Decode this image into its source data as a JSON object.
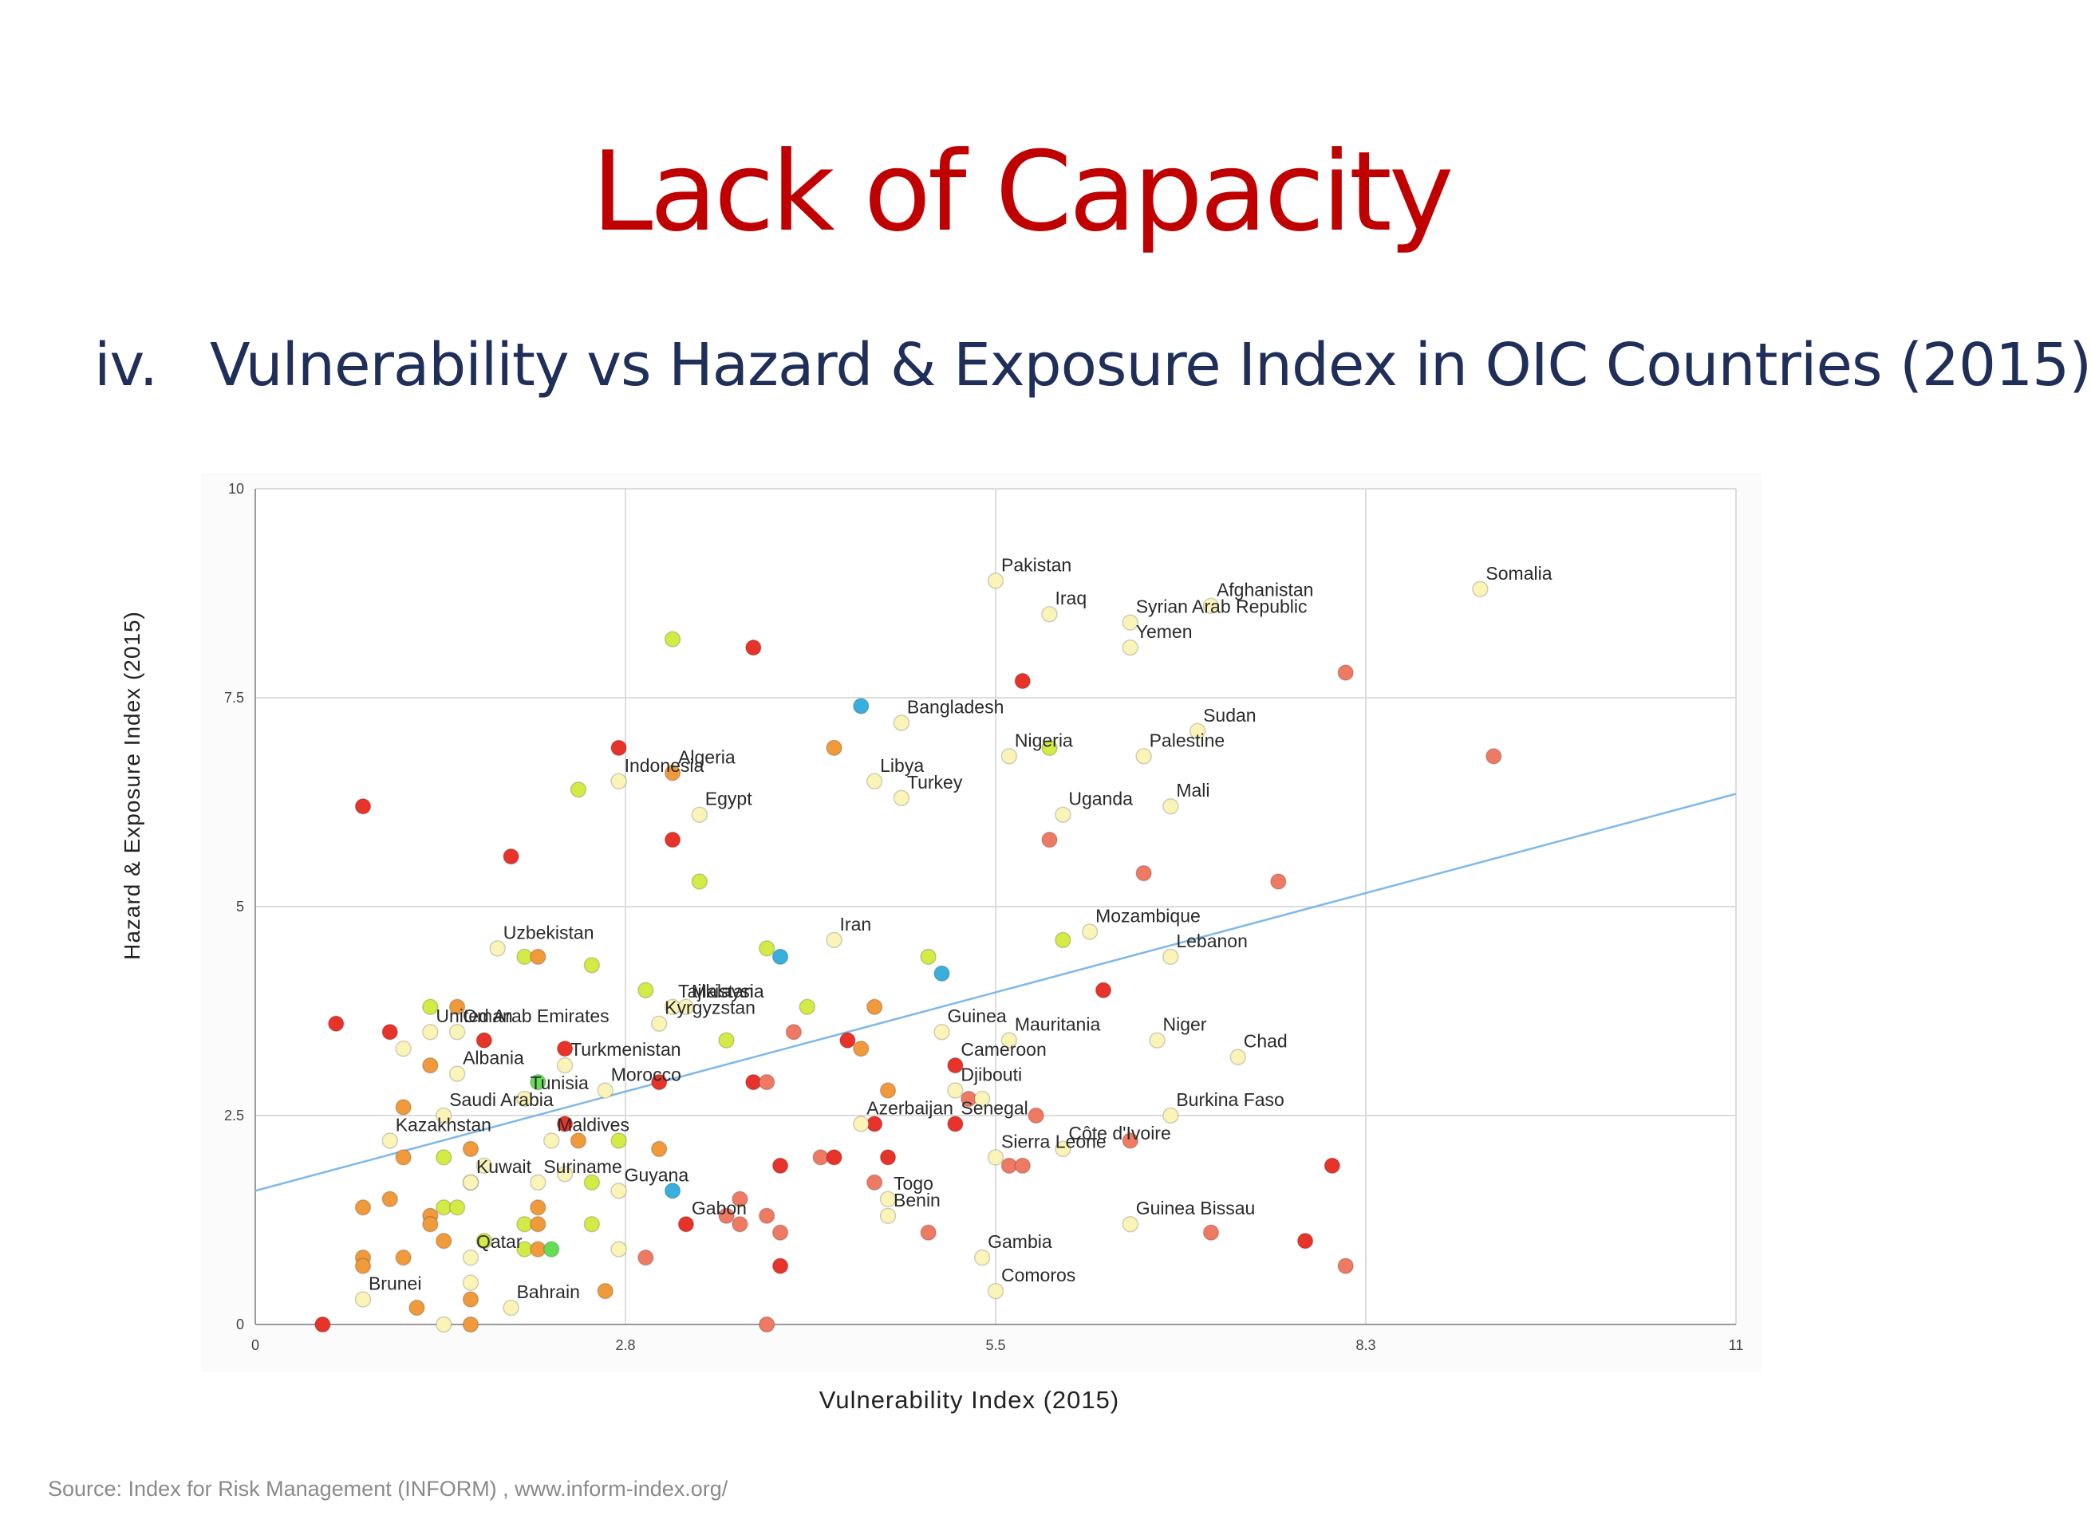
{
  "slide": {
    "title": "Lack of Capacity",
    "subtitle_number": "iv.",
    "subtitle_text": "Vulnerability vs Hazard & Exposure Index in OIC Countries (2015)",
    "source": "Source: Index for Risk Management (INFORM) , www.inform-index.org/"
  },
  "colors": {
    "red": "#e8332a",
    "salmon": "#ef7a64",
    "orange": "#f09a3c",
    "yellow": "#f7e78a",
    "pale": "#fbf4b8",
    "lime": "#d4ea45",
    "green": "#66dd55",
    "blue": "#3aaedc",
    "trendline": "#7fb8e8",
    "grid": "#dcdcdc"
  },
  "chart_data": {
    "type": "scatter",
    "xlabel": "Vulnerability Index (2015)",
    "ylabel": "Hazard & Exposure Index (2015)",
    "xlim": [
      0,
      11
    ],
    "ylim": [
      0,
      10
    ],
    "x_ticks": [
      "0",
      "2.8",
      "5.5",
      "8.3",
      "11"
    ],
    "x_tick_values": [
      0,
      2.75,
      5.5,
      8.25,
      11
    ],
    "y_ticks": [
      "0",
      "2.5",
      "5",
      "7.5",
      "10"
    ],
    "y_tick_values": [
      0,
      2.5,
      5,
      7.5,
      10
    ],
    "grid": true,
    "trendline": {
      "x": [
        0,
        11
      ],
      "y": [
        1.6,
        6.35
      ]
    },
    "points": [
      {
        "x": 5.5,
        "y": 8.9,
        "c": "pale",
        "label": "Pakistan"
      },
      {
        "x": 5.9,
        "y": 8.5,
        "c": "pale",
        "label": "Iraq"
      },
      {
        "x": 6.5,
        "y": 8.4,
        "c": "pale",
        "label": "Syrian Arab Republic"
      },
      {
        "x": 7.1,
        "y": 8.6,
        "c": "pale",
        "label": "Afghanistan"
      },
      {
        "x": 6.5,
        "y": 8.1,
        "c": "pale",
        "label": "Yemen"
      },
      {
        "x": 9.1,
        "y": 8.8,
        "c": "pale",
        "label": "Somalia"
      },
      {
        "x": 4.8,
        "y": 7.2,
        "c": "pale",
        "label": "Bangladesh"
      },
      {
        "x": 5.6,
        "y": 6.8,
        "c": "pale",
        "label": "Nigeria"
      },
      {
        "x": 5.9,
        "y": 6.9,
        "c": "lime",
        "label": ""
      },
      {
        "x": 7.0,
        "y": 7.1,
        "c": "pale",
        "label": "Sudan"
      },
      {
        "x": 6.6,
        "y": 6.8,
        "c": "pale",
        "label": "Palestine"
      },
      {
        "x": 4.6,
        "y": 6.5,
        "c": "pale",
        "label": "Libya"
      },
      {
        "x": 4.8,
        "y": 6.3,
        "c": "pale",
        "label": "Turkey"
      },
      {
        "x": 6.0,
        "y": 6.1,
        "c": "pale",
        "label": "Uganda"
      },
      {
        "x": 6.8,
        "y": 6.2,
        "c": "pale",
        "label": "Mali"
      },
      {
        "x": 2.7,
        "y": 6.5,
        "c": "pale",
        "label": "Indonesia"
      },
      {
        "x": 3.1,
        "y": 6.6,
        "c": "orange",
        "label": "Algeria"
      },
      {
        "x": 3.3,
        "y": 6.1,
        "c": "pale",
        "label": "Egypt"
      },
      {
        "x": 4.3,
        "y": 4.6,
        "c": "pale",
        "label": "Iran"
      },
      {
        "x": 6.2,
        "y": 4.7,
        "c": "pale",
        "label": "Mozambique"
      },
      {
        "x": 6.0,
        "y": 4.6,
        "c": "lime",
        "label": ""
      },
      {
        "x": 6.8,
        "y": 4.4,
        "c": "pale",
        "label": "Lebanon"
      },
      {
        "x": 1.8,
        "y": 4.5,
        "c": "pale",
        "label": "Uzbekistan"
      },
      {
        "x": 3.1,
        "y": 3.8,
        "c": "pale",
        "label": "Tajikistan"
      },
      {
        "x": 3.2,
        "y": 3.8,
        "c": "pale",
        "label": "Malaysia"
      },
      {
        "x": 5.1,
        "y": 3.5,
        "c": "pale",
        "label": "Guinea"
      },
      {
        "x": 5.6,
        "y": 3.4,
        "c": "pale",
        "label": "Mauritania"
      },
      {
        "x": 6.7,
        "y": 3.4,
        "c": "pale",
        "label": "Niger"
      },
      {
        "x": 7.3,
        "y": 3.2,
        "c": "pale",
        "label": "Chad"
      },
      {
        "x": 3.0,
        "y": 3.6,
        "c": "pale",
        "label": "Kyrgyzstan"
      },
      {
        "x": 1.5,
        "y": 3.5,
        "c": "pale",
        "label": "Oman"
      },
      {
        "x": 1.3,
        "y": 3.5,
        "c": "pale",
        "label": "United Arab Emirates"
      },
      {
        "x": 1.5,
        "y": 3.0,
        "c": "pale",
        "label": "Albania"
      },
      {
        "x": 2.3,
        "y": 3.1,
        "c": "pale",
        "label": "Turkmenistan"
      },
      {
        "x": 5.2,
        "y": 3.1,
        "c": "red",
        "label": "Cameroon"
      },
      {
        "x": 5.2,
        "y": 2.8,
        "c": "pale",
        "label": "Djibouti"
      },
      {
        "x": 2.6,
        "y": 2.8,
        "c": "pale",
        "label": "Morocco"
      },
      {
        "x": 1.4,
        "y": 2.5,
        "c": "pale",
        "label": "Saudi Arabia"
      },
      {
        "x": 2.0,
        "y": 2.7,
        "c": "pale",
        "label": "Tunisia"
      },
      {
        "x": 6.8,
        "y": 2.5,
        "c": "pale",
        "label": "Burkina Faso"
      },
      {
        "x": 1.0,
        "y": 2.2,
        "c": "pale",
        "label": "Kazakhstan"
      },
      {
        "x": 4.5,
        "y": 2.4,
        "c": "pale",
        "label": "Azerbaijan"
      },
      {
        "x": 5.2,
        "y": 2.4,
        "c": "red",
        "label": "Senegal"
      },
      {
        "x": 6.0,
        "y": 2.1,
        "c": "pale",
        "label": "Côte d'Ivoire"
      },
      {
        "x": 5.5,
        "y": 2.0,
        "c": "pale",
        "label": "Sierra Leone"
      },
      {
        "x": 2.2,
        "y": 2.2,
        "c": "pale",
        "label": "Maldives"
      },
      {
        "x": 2.1,
        "y": 1.7,
        "c": "pale",
        "label": "Suriname"
      },
      {
        "x": 2.7,
        "y": 1.6,
        "c": "pale",
        "label": "Guyana"
      },
      {
        "x": 1.6,
        "y": 1.7,
        "c": "pale",
        "label": "Kuwait"
      },
      {
        "x": 4.7,
        "y": 1.5,
        "c": "pale",
        "label": "Togo"
      },
      {
        "x": 4.7,
        "y": 1.3,
        "c": "pale",
        "label": "Benin"
      },
      {
        "x": 3.2,
        "y": 1.2,
        "c": "red",
        "label": "Gabon"
      },
      {
        "x": 6.5,
        "y": 1.2,
        "c": "pale",
        "label": "Guinea Bissau"
      },
      {
        "x": 5.4,
        "y": 0.8,
        "c": "pale",
        "label": "Gambia"
      },
      {
        "x": 5.5,
        "y": 0.4,
        "c": "pale",
        "label": "Comoros"
      },
      {
        "x": 1.6,
        "y": 0.8,
        "c": "pale",
        "label": "Qatar"
      },
      {
        "x": 0.8,
        "y": 0.3,
        "c": "pale",
        "label": "Brunei"
      },
      {
        "x": 1.9,
        "y": 0.2,
        "c": "pale",
        "label": "Bahrain"
      },
      {
        "x": 3.1,
        "y": 8.2,
        "c": "lime",
        "label": ""
      },
      {
        "x": 3.7,
        "y": 8.1,
        "c": "red",
        "label": ""
      },
      {
        "x": 5.7,
        "y": 7.7,
        "c": "red",
        "label": ""
      },
      {
        "x": 8.1,
        "y": 7.8,
        "c": "salmon",
        "label": ""
      },
      {
        "x": 4.5,
        "y": 7.4,
        "c": "blue",
        "label": ""
      },
      {
        "x": 4.3,
        "y": 6.9,
        "c": "orange",
        "label": ""
      },
      {
        "x": 2.7,
        "y": 6.9,
        "c": "red",
        "label": ""
      },
      {
        "x": 9.2,
        "y": 6.8,
        "c": "salmon",
        "label": ""
      },
      {
        "x": 0.8,
        "y": 6.2,
        "c": "red",
        "label": ""
      },
      {
        "x": 2.4,
        "y": 6.4,
        "c": "lime",
        "label": ""
      },
      {
        "x": 3.1,
        "y": 5.8,
        "c": "red",
        "label": ""
      },
      {
        "x": 5.9,
        "y": 5.8,
        "c": "salmon",
        "label": ""
      },
      {
        "x": 1.9,
        "y": 5.6,
        "c": "red",
        "label": ""
      },
      {
        "x": 6.6,
        "y": 5.4,
        "c": "salmon",
        "label": ""
      },
      {
        "x": 7.6,
        "y": 5.3,
        "c": "salmon",
        "label": ""
      },
      {
        "x": 3.3,
        "y": 5.3,
        "c": "lime",
        "label": ""
      },
      {
        "x": 3.8,
        "y": 4.5,
        "c": "lime",
        "label": ""
      },
      {
        "x": 3.9,
        "y": 4.4,
        "c": "blue",
        "label": ""
      },
      {
        "x": 5.0,
        "y": 4.4,
        "c": "lime",
        "label": ""
      },
      {
        "x": 5.1,
        "y": 4.2,
        "c": "blue",
        "label": ""
      },
      {
        "x": 2.0,
        "y": 4.4,
        "c": "lime",
        "label": ""
      },
      {
        "x": 2.1,
        "y": 4.4,
        "c": "orange",
        "label": ""
      },
      {
        "x": 2.5,
        "y": 4.3,
        "c": "lime",
        "label": ""
      },
      {
        "x": 6.3,
        "y": 4.0,
        "c": "red",
        "label": ""
      },
      {
        "x": 2.9,
        "y": 4.0,
        "c": "lime",
        "label": ""
      },
      {
        "x": 1.3,
        "y": 3.8,
        "c": "lime",
        "label": ""
      },
      {
        "x": 1.5,
        "y": 3.8,
        "c": "orange",
        "label": ""
      },
      {
        "x": 4.6,
        "y": 3.8,
        "c": "orange",
        "label": ""
      },
      {
        "x": 4.1,
        "y": 3.8,
        "c": "lime",
        "label": ""
      },
      {
        "x": 0.6,
        "y": 3.6,
        "c": "red",
        "label": ""
      },
      {
        "x": 1.0,
        "y": 3.5,
        "c": "red",
        "label": ""
      },
      {
        "x": 1.7,
        "y": 3.4,
        "c": "red",
        "label": ""
      },
      {
        "x": 4.0,
        "y": 3.5,
        "c": "salmon",
        "label": ""
      },
      {
        "x": 3.5,
        "y": 3.4,
        "c": "lime",
        "label": ""
      },
      {
        "x": 4.4,
        "y": 3.4,
        "c": "red",
        "label": ""
      },
      {
        "x": 4.5,
        "y": 3.3,
        "c": "orange",
        "label": ""
      },
      {
        "x": 1.1,
        "y": 3.3,
        "c": "pale",
        "label": ""
      },
      {
        "x": 2.3,
        "y": 3.3,
        "c": "red",
        "label": ""
      },
      {
        "x": 1.3,
        "y": 3.1,
        "c": "orange",
        "label": ""
      },
      {
        "x": 3.7,
        "y": 2.9,
        "c": "red",
        "label": ""
      },
      {
        "x": 3.8,
        "y": 2.9,
        "c": "salmon",
        "label": ""
      },
      {
        "x": 3.0,
        "y": 2.9,
        "c": "red",
        "label": ""
      },
      {
        "x": 2.1,
        "y": 2.9,
        "c": "green",
        "label": ""
      },
      {
        "x": 4.7,
        "y": 2.8,
        "c": "orange",
        "label": ""
      },
      {
        "x": 5.3,
        "y": 2.7,
        "c": "salmon",
        "label": ""
      },
      {
        "x": 5.4,
        "y": 2.7,
        "c": "pale",
        "label": ""
      },
      {
        "x": 1.1,
        "y": 2.6,
        "c": "orange",
        "label": ""
      },
      {
        "x": 5.8,
        "y": 2.5,
        "c": "salmon",
        "label": ""
      },
      {
        "x": 2.3,
        "y": 2.4,
        "c": "red",
        "label": ""
      },
      {
        "x": 4.6,
        "y": 2.4,
        "c": "red",
        "label": ""
      },
      {
        "x": 2.4,
        "y": 2.2,
        "c": "orange",
        "label": ""
      },
      {
        "x": 2.7,
        "y": 2.2,
        "c": "lime",
        "label": ""
      },
      {
        "x": 6.5,
        "y": 2.2,
        "c": "salmon",
        "label": ""
      },
      {
        "x": 1.6,
        "y": 2.1,
        "c": "orange",
        "label": ""
      },
      {
        "x": 3.0,
        "y": 2.1,
        "c": "orange",
        "label": ""
      },
      {
        "x": 1.1,
        "y": 2.0,
        "c": "orange",
        "label": ""
      },
      {
        "x": 1.4,
        "y": 2.0,
        "c": "lime",
        "label": ""
      },
      {
        "x": 4.2,
        "y": 2.0,
        "c": "salmon",
        "label": ""
      },
      {
        "x": 4.3,
        "y": 2.0,
        "c": "red",
        "label": ""
      },
      {
        "x": 4.7,
        "y": 2.0,
        "c": "red",
        "label": ""
      },
      {
        "x": 1.7,
        "y": 1.9,
        "c": "pale",
        "label": ""
      },
      {
        "x": 3.9,
        "y": 1.9,
        "c": "red",
        "label": ""
      },
      {
        "x": 5.6,
        "y": 1.9,
        "c": "salmon",
        "label": ""
      },
      {
        "x": 5.7,
        "y": 1.9,
        "c": "salmon",
        "label": ""
      },
      {
        "x": 8.0,
        "y": 1.9,
        "c": "red",
        "label": ""
      },
      {
        "x": 2.3,
        "y": 1.8,
        "c": "pale",
        "label": ""
      },
      {
        "x": 2.5,
        "y": 1.7,
        "c": "lime",
        "label": ""
      },
      {
        "x": 1.6,
        "y": 1.7,
        "c": "orange",
        "label": ""
      },
      {
        "x": 4.6,
        "y": 1.7,
        "c": "salmon",
        "label": ""
      },
      {
        "x": 3.1,
        "y": 1.6,
        "c": "blue",
        "label": ""
      },
      {
        "x": 1.0,
        "y": 1.5,
        "c": "orange",
        "label": ""
      },
      {
        "x": 3.6,
        "y": 1.5,
        "c": "salmon",
        "label": ""
      },
      {
        "x": 0.8,
        "y": 1.4,
        "c": "orange",
        "label": ""
      },
      {
        "x": 1.4,
        "y": 1.4,
        "c": "lime",
        "label": ""
      },
      {
        "x": 1.5,
        "y": 1.4,
        "c": "lime",
        "label": ""
      },
      {
        "x": 2.1,
        "y": 1.4,
        "c": "orange",
        "label": ""
      },
      {
        "x": 1.3,
        "y": 1.3,
        "c": "orange",
        "label": ""
      },
      {
        "x": 3.5,
        "y": 1.3,
        "c": "salmon",
        "label": ""
      },
      {
        "x": 3.8,
        "y": 1.3,
        "c": "salmon",
        "label": ""
      },
      {
        "x": 1.3,
        "y": 1.2,
        "c": "orange",
        "label": ""
      },
      {
        "x": 2.0,
        "y": 1.2,
        "c": "lime",
        "label": ""
      },
      {
        "x": 2.1,
        "y": 1.2,
        "c": "orange",
        "label": ""
      },
      {
        "x": 2.5,
        "y": 1.2,
        "c": "lime",
        "label": ""
      },
      {
        "x": 3.6,
        "y": 1.2,
        "c": "salmon",
        "label": ""
      },
      {
        "x": 3.9,
        "y": 1.1,
        "c": "salmon",
        "label": ""
      },
      {
        "x": 5.0,
        "y": 1.1,
        "c": "salmon",
        "label": ""
      },
      {
        "x": 7.1,
        "y": 1.1,
        "c": "salmon",
        "label": ""
      },
      {
        "x": 1.4,
        "y": 1.0,
        "c": "orange",
        "label": ""
      },
      {
        "x": 1.7,
        "y": 1.0,
        "c": "lime",
        "label": ""
      },
      {
        "x": 7.8,
        "y": 1.0,
        "c": "red",
        "label": ""
      },
      {
        "x": 2.0,
        "y": 0.9,
        "c": "lime",
        "label": ""
      },
      {
        "x": 2.1,
        "y": 0.9,
        "c": "orange",
        "label": ""
      },
      {
        "x": 2.2,
        "y": 0.9,
        "c": "green",
        "label": ""
      },
      {
        "x": 2.7,
        "y": 0.9,
        "c": "pale",
        "label": ""
      },
      {
        "x": 0.8,
        "y": 0.8,
        "c": "orange",
        "label": ""
      },
      {
        "x": 1.1,
        "y": 0.8,
        "c": "orange",
        "label": ""
      },
      {
        "x": 2.9,
        "y": 0.8,
        "c": "salmon",
        "label": ""
      },
      {
        "x": 0.8,
        "y": 0.7,
        "c": "orange",
        "label": ""
      },
      {
        "x": 3.9,
        "y": 0.7,
        "c": "red",
        "label": ""
      },
      {
        "x": 8.1,
        "y": 0.7,
        "c": "salmon",
        "label": ""
      },
      {
        "x": 1.6,
        "y": 0.5,
        "c": "pale",
        "label": ""
      },
      {
        "x": 2.6,
        "y": 0.4,
        "c": "orange",
        "label": ""
      },
      {
        "x": 1.6,
        "y": 0.3,
        "c": "orange",
        "label": ""
      },
      {
        "x": 1.2,
        "y": 0.2,
        "c": "orange",
        "label": ""
      },
      {
        "x": 0.5,
        "y": 0.0,
        "c": "red",
        "label": ""
      },
      {
        "x": 1.4,
        "y": 0.0,
        "c": "pale",
        "label": ""
      },
      {
        "x": 1.6,
        "y": 0.0,
        "c": "orange",
        "label": ""
      },
      {
        "x": 3.8,
        "y": 0.0,
        "c": "salmon",
        "label": ""
      }
    ]
  }
}
